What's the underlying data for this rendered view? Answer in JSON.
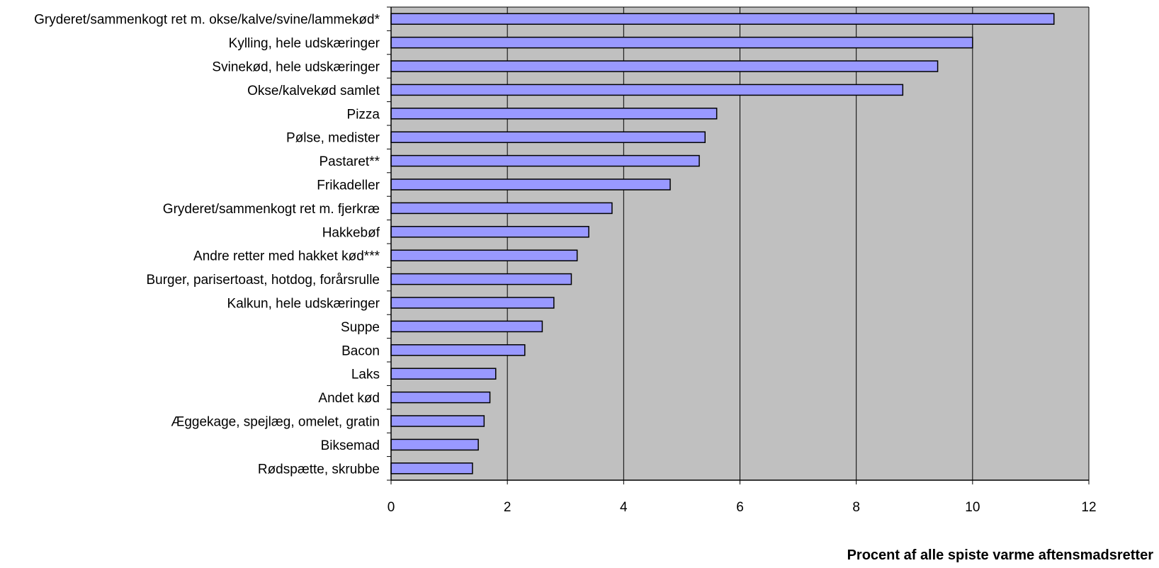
{
  "chart_data": {
    "type": "bar",
    "orientation": "horizontal",
    "categories": [
      "Gryderet/sammenkogt ret m. okse/kalve/svine/lammekød*",
      "Kylling, hele udskæringer",
      "Svinekød, hele udskæringer",
      "Okse/kalvekød samlet",
      "Pizza",
      "Pølse, medister",
      "Pastaret**",
      "Frikadeller",
      "Gryderet/sammenkogt ret m. fjerkræ",
      "Hakkebøf",
      "Andre retter med hakket kød***",
      "Burger, parisertoast, hotdog, forårsrulle",
      "Kalkun, hele udskæringer",
      "Suppe",
      "Bacon",
      "Laks",
      "Andet kød",
      "Æggekage, spejlæg, omelet, gratin",
      "Biksemad",
      "Rødspætte, skrubbe"
    ],
    "values": [
      11.4,
      10.0,
      9.4,
      8.8,
      5.6,
      5.4,
      5.3,
      4.8,
      3.8,
      3.4,
      3.2,
      3.1,
      2.8,
      2.6,
      2.3,
      1.8,
      1.7,
      1.6,
      1.5,
      1.4
    ],
    "xlabel": "Procent af alle spiste varme aftensmadsretter",
    "xlim": [
      0,
      12
    ],
    "xticks": [
      "0",
      "2",
      "4",
      "6",
      "8",
      "10",
      "12"
    ],
    "grid": true,
    "colors": {
      "bar_fill": "#9999ff",
      "bar_stroke": "#000000",
      "plot_background": "#c0c0c0",
      "gridline": "#000000"
    }
  }
}
